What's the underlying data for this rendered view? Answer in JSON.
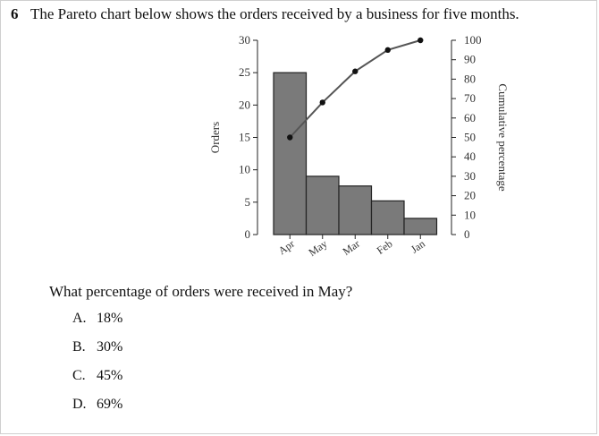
{
  "question": {
    "number": "6",
    "text": "The Pareto chart below shows the orders received by a business for five months."
  },
  "sub_question": "What percentage of orders were received in May?",
  "options": [
    {
      "letter": "A.",
      "text": "18%"
    },
    {
      "letter": "B.",
      "text": "30%"
    },
    {
      "letter": "C.",
      "text": "45%"
    },
    {
      "letter": "D.",
      "text": "69%"
    }
  ],
  "colors": {
    "bar_fill": "#7a7a7a",
    "bar_stroke": "#222222",
    "line": "#555555",
    "point": "#111111"
  },
  "chart_data": {
    "type": "bar",
    "categories": [
      "Apr",
      "May",
      "Mar",
      "Feb",
      "Jan"
    ],
    "values": [
      25,
      9,
      7.5,
      5.2,
      2.5
    ],
    "ylabel": "Orders",
    "ylim": [
      0,
      30
    ],
    "yticks": [
      0,
      5,
      10,
      15,
      20,
      25,
      30
    ],
    "y2label": "Cumulative percentage",
    "y2lim": [
      0,
      100
    ],
    "y2ticks": [
      0,
      10,
      20,
      30,
      40,
      50,
      60,
      70,
      80,
      90,
      100
    ],
    "cumulative_line": {
      "type": "line",
      "x": [
        "Apr",
        "May",
        "Mar",
        "Feb",
        "Jan"
      ],
      "values": [
        50,
        68,
        84,
        95,
        100
      ]
    },
    "grid": false
  }
}
